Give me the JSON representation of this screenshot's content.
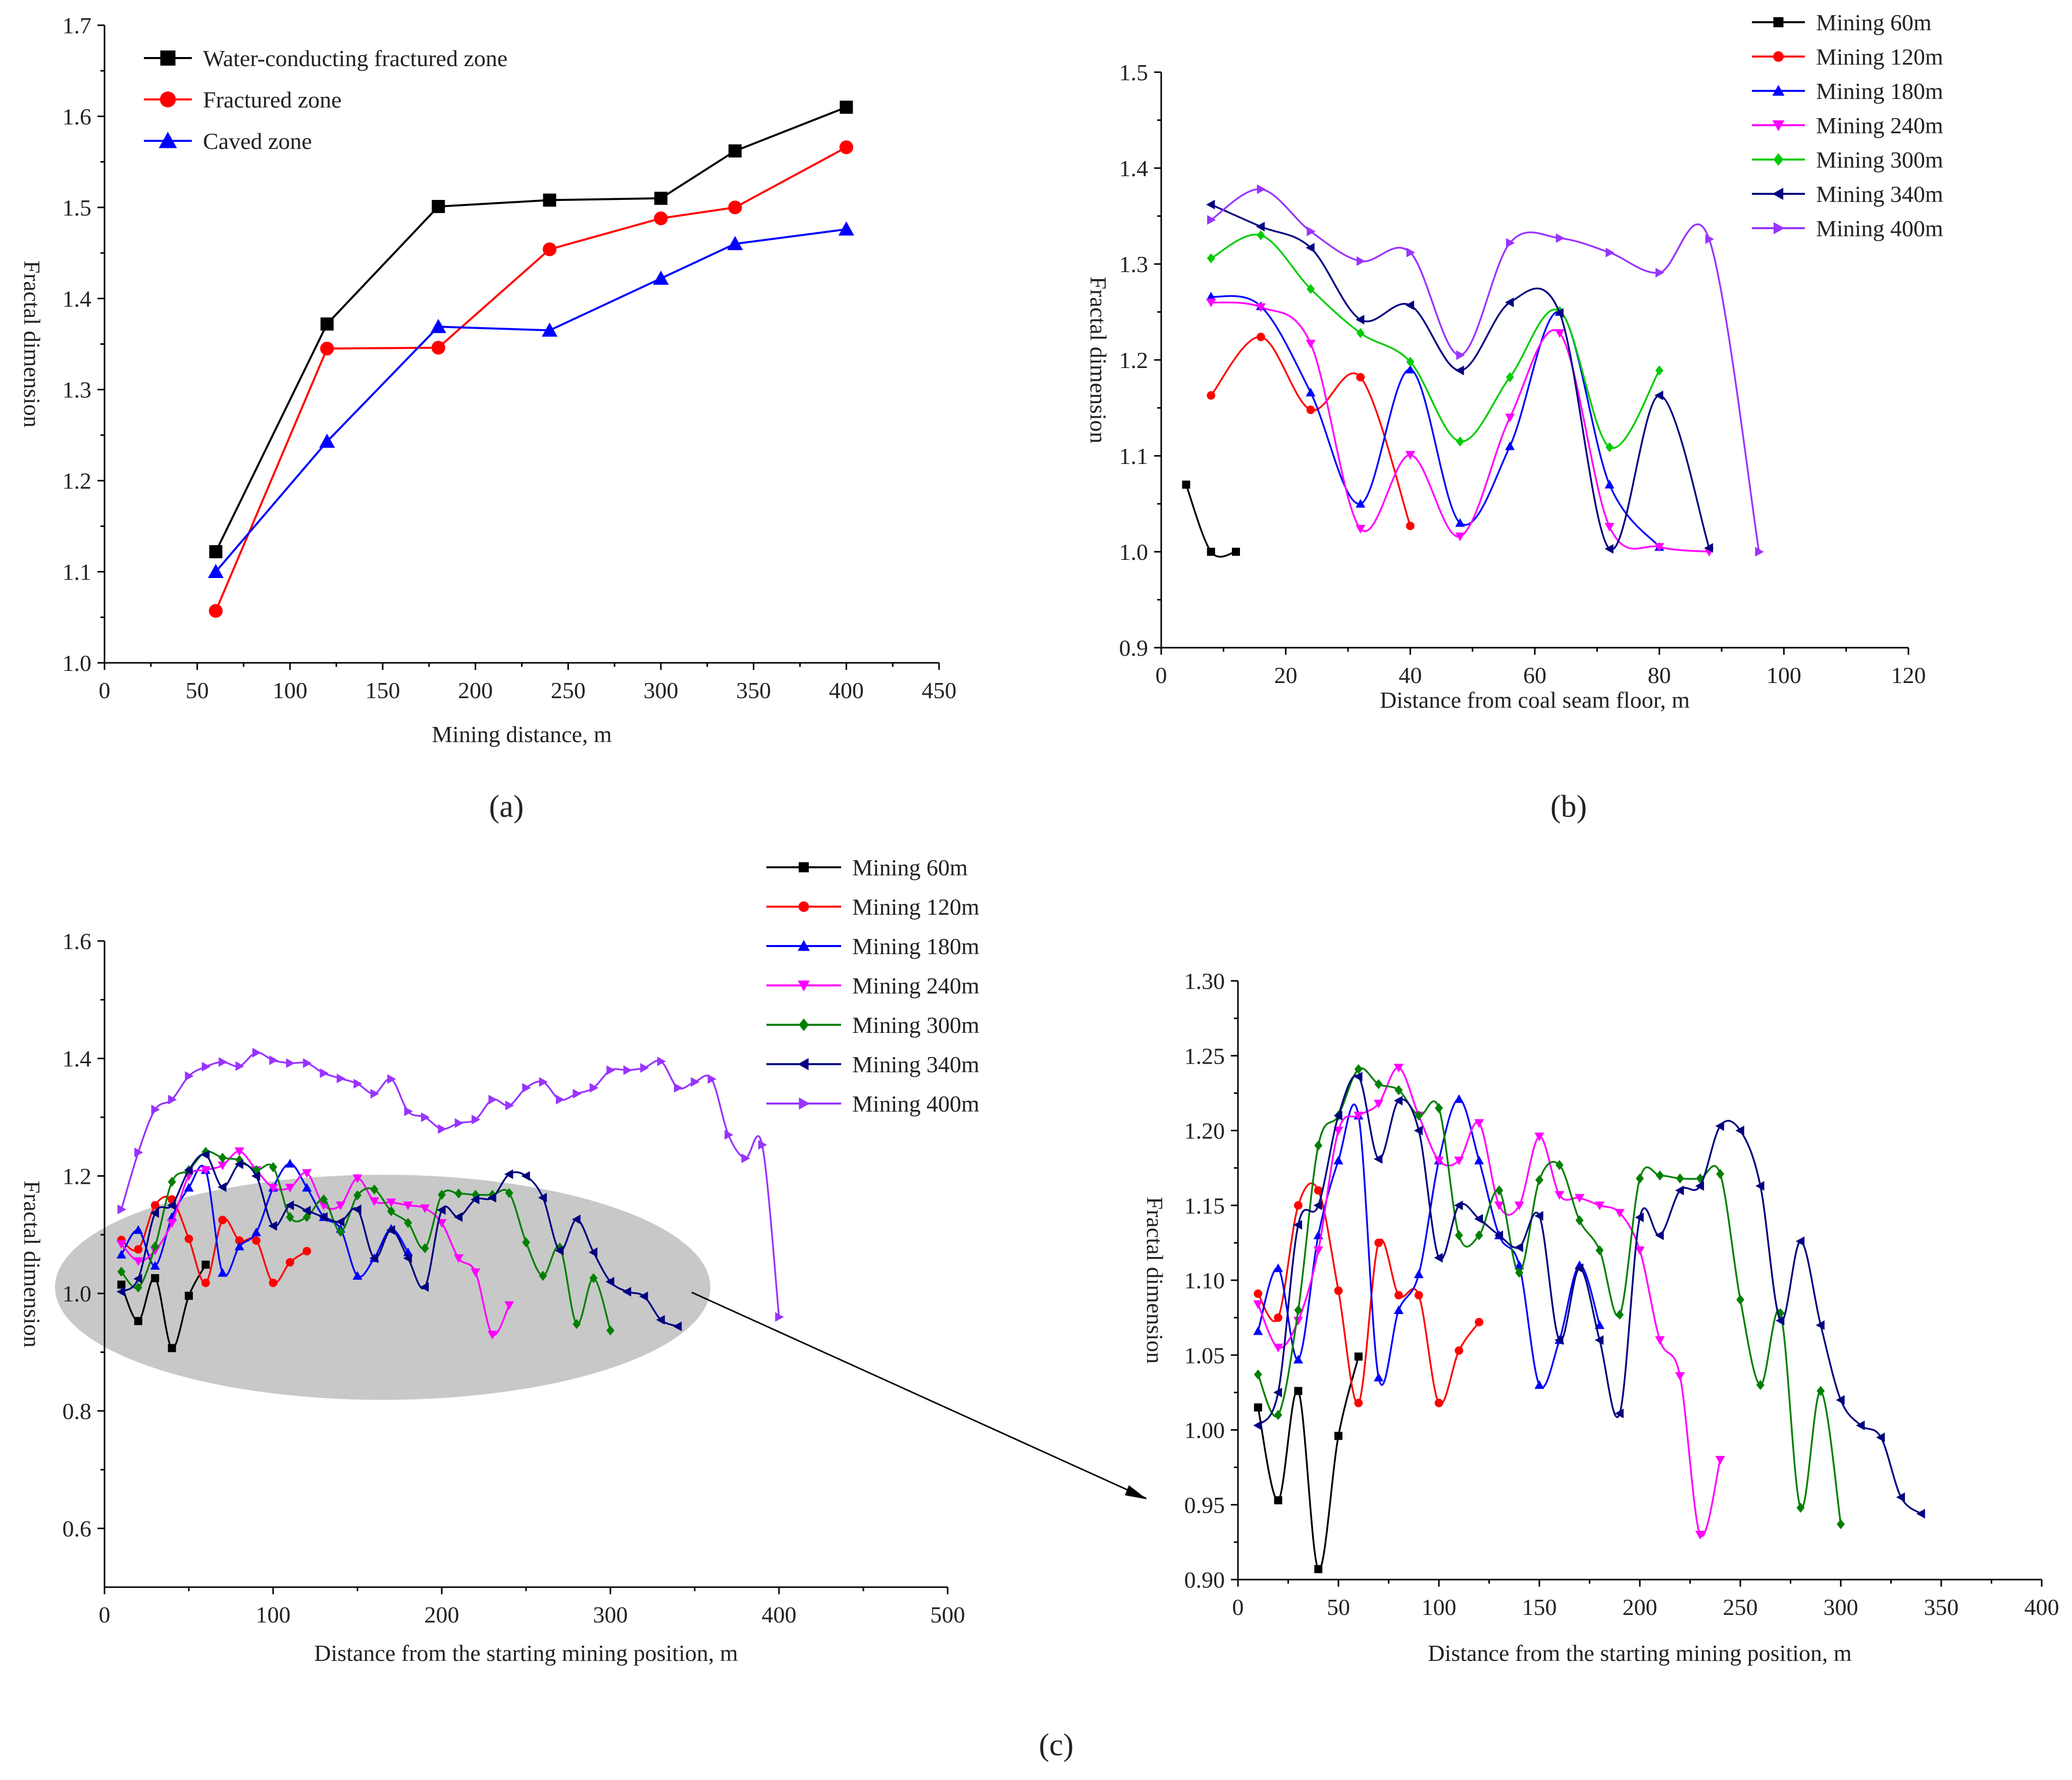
{
  "chart_data": [
    {
      "panel": "a",
      "type": "line",
      "panel_label": "(a)",
      "xlabel": "Mining distance, m",
      "ylabel": "Fractal dimension",
      "xlim": [
        0,
        450
      ],
      "ylim": [
        1.0,
        1.7
      ],
      "xticks": [
        0,
        50,
        100,
        150,
        200,
        250,
        300,
        350,
        400,
        450
      ],
      "yticks": [
        1.0,
        1.1,
        1.2,
        1.3,
        1.4,
        1.5,
        1.6,
        1.7
      ],
      "legend_position": "top-left",
      "series": [
        {
          "name": "Water-conducting fractured zone",
          "color": "#000000",
          "marker": "square",
          "x": [
            60,
            120,
            180,
            240,
            300,
            340,
            400
          ],
          "y": [
            1.122,
            1.372,
            1.501,
            1.508,
            1.51,
            1.562,
            1.61
          ]
        },
        {
          "name": "Fractured zone",
          "color": "#ff0000",
          "marker": "circle",
          "x": [
            60,
            120,
            180,
            240,
            300,
            340,
            400
          ],
          "y": [
            1.057,
            1.345,
            1.346,
            1.454,
            1.488,
            1.5,
            1.566
          ]
        },
        {
          "name": "Caved zone",
          "color": "#0000ff",
          "marker": "triangle-up",
          "x": [
            60,
            120,
            180,
            240,
            300,
            340,
            400
          ],
          "y": [
            1.1,
            1.243,
            1.369,
            1.365,
            1.422,
            1.46,
            1.476
          ]
        }
      ]
    },
    {
      "panel": "b",
      "type": "scatter",
      "panel_label": "(b)",
      "xlabel": "Distance from coal seam floor, m",
      "ylabel": "Fractal dimension",
      "xlim": [
        0,
        120
      ],
      "ylim": [
        0.9,
        1.5
      ],
      "xticks": [
        0,
        20,
        40,
        60,
        80,
        100,
        120
      ],
      "yticks": [
        0.9,
        1.0,
        1.1,
        1.2,
        1.3,
        1.4,
        1.5
      ],
      "legend_position": "top-right",
      "series": [
        {
          "name": "Mining 60m",
          "color": "#000000",
          "marker": "square",
          "x": [
            4,
            8,
            12
          ],
          "y": [
            1.07,
            1.0,
            1.0
          ]
        },
        {
          "name": "Mining 120m",
          "color": "#ff0000",
          "marker": "circle",
          "x": [
            8,
            16,
            24,
            32,
            40
          ],
          "y": [
            1.163,
            1.224,
            1.148,
            1.182,
            1.027
          ]
        },
        {
          "name": "Mining 180m",
          "color": "#0000ff",
          "marker": "triangle-up",
          "x": [
            8,
            16,
            24,
            32,
            40,
            48,
            56,
            64,
            72,
            80
          ],
          "y": [
            1.266,
            1.256,
            1.166,
            1.05,
            1.19,
            1.03,
            1.11,
            1.25,
            1.07,
            1.005
          ]
        },
        {
          "name": "Mining 240m",
          "color": "#ff00ff",
          "marker": "triangle-down",
          "x": [
            8,
            16,
            24,
            32,
            40,
            48,
            56,
            64,
            72,
            80,
            88
          ],
          "y": [
            1.26,
            1.255,
            1.217,
            1.024,
            1.101,
            1.016,
            1.14,
            1.228,
            1.026,
            1.005,
            1.0
          ]
        },
        {
          "name": "Mining 300m",
          "color": "#00cc00",
          "marker": "diamond",
          "x": [
            8,
            16,
            24,
            32,
            40,
            48,
            56,
            64,
            72,
            80
          ],
          "y": [
            1.306,
            1.33,
            1.274,
            1.228,
            1.198,
            1.115,
            1.182,
            1.251,
            1.109,
            1.189
          ]
        },
        {
          "name": "Mining 340m",
          "color": "#000080",
          "marker": "triangle-left",
          "x": [
            8,
            16,
            24,
            32,
            40,
            48,
            56,
            64,
            72,
            80,
            88
          ],
          "y": [
            1.362,
            1.339,
            1.317,
            1.242,
            1.257,
            1.189,
            1.26,
            1.249,
            1.003,
            1.163,
            1.004
          ]
        },
        {
          "name": "Mining 400m",
          "color": "#9933ff",
          "marker": "triangle-right",
          "x": [
            8,
            16,
            24,
            32,
            40,
            48,
            56,
            64,
            72,
            80,
            88,
            96
          ],
          "y": [
            1.346,
            1.378,
            1.334,
            1.303,
            1.312,
            1.205,
            1.322,
            1.327,
            1.312,
            1.291,
            1.326,
            1.0
          ]
        }
      ]
    },
    {
      "panel": "c-left",
      "type": "scatter",
      "panel_label": "(c)",
      "xlabel": "Distance from the starting mining position, m",
      "ylabel": "Fractal dimension",
      "xlim": [
        0,
        500
      ],
      "ylim": [
        0.5,
        1.6
      ],
      "xticks": [
        0,
        100,
        200,
        300,
        400,
        500
      ],
      "yticks": [
        0.6,
        0.8,
        1.0,
        1.2,
        1.4,
        1.6
      ],
      "legend_position": "top-right",
      "annotation": "grey ellipse highlighting the 0.9-1.25 region, arrow pointing to the enlarged view",
      "series": [
        {
          "name": "Mining 60m",
          "color": "#000000",
          "marker": "square",
          "x": [
            10,
            20,
            30,
            40,
            50,
            60
          ],
          "y": [
            1.015,
            0.953,
            1.026,
            0.907,
            0.996,
            1.049
          ]
        },
        {
          "name": "Mining 120m",
          "color": "#ff0000",
          "marker": "circle",
          "x": [
            10,
            20,
            30,
            40,
            50,
            60,
            70,
            80,
            90,
            100,
            110,
            120
          ],
          "y": [
            1.091,
            1.075,
            1.15,
            1.16,
            1.093,
            1.018,
            1.125,
            1.09,
            1.09,
            1.018,
            1.053,
            1.072
          ]
        },
        {
          "name": "Mining 180m",
          "color": "#0000ff",
          "marker": "triangle-up",
          "x": [
            10,
            20,
            30,
            40,
            50,
            60,
            70,
            80,
            90,
            100,
            110,
            120,
            130,
            140,
            150,
            160,
            170,
            180
          ],
          "y": [
            1.066,
            1.108,
            1.047,
            1.13,
            1.18,
            1.21,
            1.035,
            1.08,
            1.104,
            1.18,
            1.221,
            1.18,
            1.13,
            1.11,
            1.03,
            1.06,
            1.11,
            1.07
          ]
        },
        {
          "name": "Mining 240m",
          "color": "#ff00ff",
          "marker": "triangle-down",
          "x": [
            10,
            20,
            30,
            40,
            50,
            60,
            70,
            80,
            90,
            100,
            110,
            120,
            130,
            140,
            150,
            160,
            170,
            180,
            190,
            200,
            210,
            220,
            230,
            240
          ],
          "y": [
            1.084,
            1.055,
            1.073,
            1.12,
            1.2,
            1.21,
            1.218,
            1.242,
            1.21,
            1.18,
            1.18,
            1.205,
            1.15,
            1.15,
            1.196,
            1.157,
            1.155,
            1.15,
            1.145,
            1.12,
            1.06,
            1.036,
            0.93,
            0.98
          ]
        },
        {
          "name": "Mining 300m",
          "color": "#008000",
          "marker": "diamond",
          "x": [
            10,
            20,
            30,
            40,
            50,
            60,
            70,
            80,
            90,
            100,
            110,
            120,
            130,
            140,
            150,
            160,
            170,
            180,
            190,
            200,
            210,
            220,
            230,
            240,
            250,
            260,
            270,
            280,
            290,
            300
          ],
          "y": [
            1.037,
            1.01,
            1.08,
            1.19,
            1.21,
            1.241,
            1.231,
            1.227,
            1.21,
            1.215,
            1.13,
            1.13,
            1.16,
            1.105,
            1.167,
            1.177,
            1.14,
            1.12,
            1.077,
            1.168,
            1.17,
            1.168,
            1.168,
            1.171,
            1.087,
            1.03,
            1.078,
            0.948,
            1.026,
            0.937
          ]
        },
        {
          "name": "Mining 340m",
          "color": "#000080",
          "marker": "triangle-left",
          "x": [
            10,
            20,
            30,
            40,
            50,
            60,
            70,
            80,
            90,
            100,
            110,
            120,
            130,
            140,
            150,
            160,
            170,
            180,
            190,
            200,
            210,
            220,
            230,
            240,
            250,
            260,
            270,
            280,
            290,
            300,
            310,
            320,
            330,
            340
          ],
          "y": [
            1.003,
            1.025,
            1.137,
            1.15,
            1.21,
            1.236,
            1.181,
            1.22,
            1.2,
            1.115,
            1.15,
            1.141,
            1.13,
            1.122,
            1.143,
            1.06,
            1.108,
            1.06,
            1.011,
            1.142,
            1.13,
            1.16,
            1.163,
            1.203,
            1.2,
            1.163,
            1.073,
            1.126,
            1.07,
            1.02,
            1.003,
            0.995,
            0.955,
            0.944
          ]
        },
        {
          "name": "Mining 400m",
          "color": "#9933ff",
          "marker": "triangle-right",
          "x": [
            10,
            20,
            30,
            40,
            50,
            60,
            70,
            80,
            90,
            100,
            110,
            120,
            130,
            140,
            150,
            160,
            170,
            180,
            190,
            200,
            210,
            220,
            230,
            240,
            250,
            260,
            270,
            280,
            290,
            300,
            310,
            320,
            330,
            340,
            350,
            360,
            370,
            380,
            390,
            400
          ],
          "y": [
            1.143,
            1.24,
            1.313,
            1.33,
            1.37,
            1.386,
            1.394,
            1.387,
            1.41,
            1.397,
            1.392,
            1.392,
            1.375,
            1.366,
            1.357,
            1.34,
            1.365,
            1.31,
            1.3,
            1.28,
            1.29,
            1.296,
            1.33,
            1.32,
            1.35,
            1.36,
            1.33,
            1.34,
            1.35,
            1.38,
            1.38,
            1.384,
            1.395,
            1.35,
            1.36,
            1.365,
            1.27,
            1.23,
            1.253,
            0.96
          ]
        }
      ]
    },
    {
      "panel": "c-right",
      "type": "scatter",
      "panel_label": "",
      "xlabel": "Distance from the starting mining position, m",
      "ylabel": "Fractal dimension",
      "xlim": [
        0,
        400
      ],
      "ylim": [
        0.9,
        1.3
      ],
      "xticks": [
        0,
        50,
        100,
        150,
        200,
        250,
        300,
        350,
        400
      ],
      "yticks": [
        0.9,
        0.95,
        1.0,
        1.05,
        1.1,
        1.15,
        1.2,
        1.25,
        1.3
      ],
      "legend_position": "none",
      "series_ref": "same series as panel c-left, Mining 60m to Mining 340m",
      "series": []
    }
  ]
}
